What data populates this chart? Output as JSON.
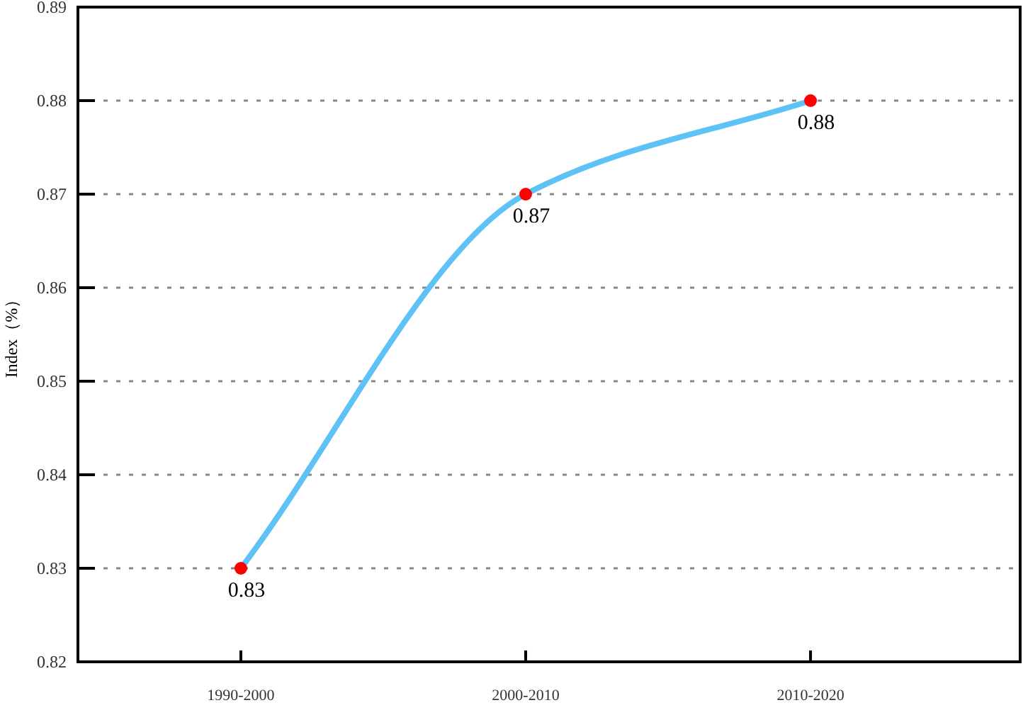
{
  "chart_data": {
    "type": "line",
    "ylabel": "Index（%）",
    "categories": [
      "1990-2000",
      "2000-2010",
      "2010-2020"
    ],
    "series": [
      {
        "color": "#5ec2f7",
        "colors": [
          "#ff0000",
          "#ff0000",
          "#ff0000"
        ],
        "values": [
          0.83,
          0.87,
          0.88
        ]
      }
    ],
    "marker": "circle",
    "ylim": [
      0.82,
      0.89
    ],
    "yticks": [
      0.82,
      0.83,
      0.84,
      0.85,
      0.86,
      0.87,
      0.88,
      0.89
    ],
    "grid": "y",
    "data_labels": true,
    "line_style": "solid"
  }
}
